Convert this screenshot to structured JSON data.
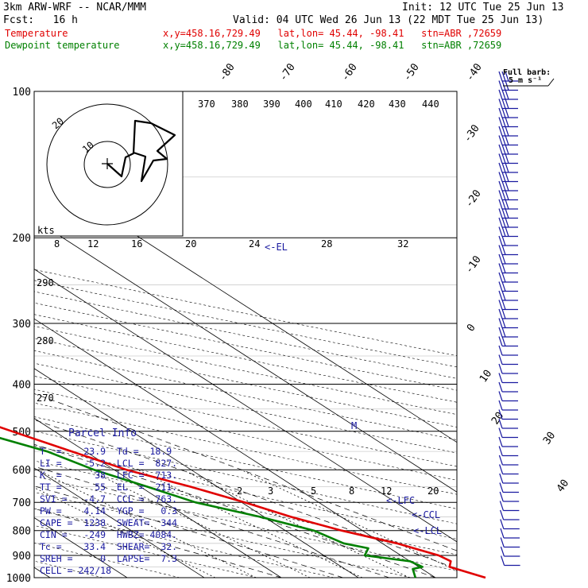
{
  "header": {
    "model": "3km ARW-WRF -- NCAR/MMM",
    "init": "Init: 12 UTC Tue 25 Jun 13",
    "fcst": "Fcst:   16 h",
    "valid": "Valid: 04 UTC Wed 26 Jun 13 (22 MDT Tue 25 Jun 13)",
    "temp_label": "Temperature",
    "temp_info": "x,y=458.16,729.49   lat,lon= 45.44, -98.41   stn=ABR ,72659",
    "dew_label": "Dewpoint temperature",
    "dew_info": "x,y=458.16,729.49   lat,lon= 45.44, -98.41   stn=ABR ,72659"
  },
  "colors": {
    "temperature": "#e00000",
    "dewpoint": "#008000",
    "parcel": "#1a1aa0",
    "barbs": "#1a1aa0"
  },
  "wind_legend": {
    "line1": "Full barb:",
    "line2": "5 m s⁻¹"
  },
  "parcel_info": {
    "title": "Parcel Info",
    "rows": [
      "T  =    23.9  Td =  18.9",
      "LI =    -5.2  LCL =  827.",
      "K  =      38  LFC =  713.",
      "TT =      55  EL  =  211.",
      "SVI =   -4.7  CCL =  763.",
      "PW =    4.14  YGP =   0.3",
      "CAPE =  1238  SWEAT=  344",
      "CIN =   -249  HWBZ= 4084.",
      "Tc =    33.4  SHEAR=  32.",
      "SREH =     0  LAPSE=  7.3",
      "CELL = 242/18"
    ]
  },
  "hodograph": {
    "units": "kts",
    "ring_labels": [
      "20",
      "10"
    ]
  },
  "annotations": {
    "el": "<-EL",
    "lfc": "<-LFC",
    "ccl": "<-CCL",
    "lcl": "<-LCL",
    "m": "M"
  },
  "chart_data": {
    "type": "line",
    "title": "Skew-T log-P sounding",
    "xlabel": "Temperature (°C)",
    "ylabel": "Pressure (hPa)",
    "pressure_ticks": [
      "100",
      "200",
      "300",
      "400",
      "500",
      "600",
      "700",
      "800",
      "900",
      "1000"
    ],
    "isotherm_labels_top": [
      "-80",
      "-70",
      "-60",
      "-50",
      "-40"
    ],
    "isotherm_labels_right": [
      "-30",
      "-20",
      "-10",
      "0",
      "10",
      "20",
      "30",
      "40"
    ],
    "theta_labels": [
      "370",
      "380",
      "390",
      "400",
      "410",
      "420",
      "430",
      "440"
    ],
    "theta_labels_left": [
      "290",
      "280",
      "270"
    ],
    "mixing_ratio_labels": [
      "2",
      "3",
      "5",
      "8",
      "12",
      "20"
    ],
    "lower_isotherm_labels": [
      "8",
      "12",
      "16",
      "20",
      "24",
      "28",
      "32"
    ],
    "series": [
      {
        "name": "Temperature",
        "unit": "°C",
        "points": [
          [
            1000,
            26.5
          ],
          [
            950,
            24.0
          ],
          [
            925,
            25.3
          ],
          [
            900,
            24.9
          ],
          [
            850,
            21.9
          ],
          [
            800,
            17.3
          ],
          [
            750,
            13.5
          ],
          [
            700,
            10.4
          ],
          [
            650,
            6.5
          ],
          [
            600,
            1.6
          ],
          [
            550,
            -1.8
          ],
          [
            500,
            -5.5
          ],
          [
            450,
            -9.5
          ],
          [
            400,
            -14.5
          ],
          [
            350,
            -21.5
          ],
          [
            300,
            -30.0
          ],
          [
            250,
            -40.0
          ],
          [
            200,
            -50.5
          ],
          [
            180,
            -51.0
          ],
          [
            160,
            -50.5
          ],
          [
            145,
            -51.0
          ],
          [
            130,
            -48.0
          ],
          [
            115,
            -49.0
          ],
          [
            100,
            -50.5
          ]
        ]
      },
      {
        "name": "Dewpoint temperature",
        "unit": "°C",
        "points": [
          [
            1000,
            17.4
          ],
          [
            960,
            18.8
          ],
          [
            950,
            20.5
          ],
          [
            925,
            20.0
          ],
          [
            900,
            15.3
          ],
          [
            870,
            17.2
          ],
          [
            850,
            15.0
          ],
          [
            800,
            13.7
          ],
          [
            750,
            9.5
          ],
          [
            700,
            4.0
          ],
          [
            650,
            0.9
          ],
          [
            600,
            -2.6
          ],
          [
            550,
            -5.0
          ],
          [
            500,
            -10.1
          ],
          [
            450,
            -14.2
          ],
          [
            400,
            -20.0
          ],
          [
            350,
            -27.3
          ],
          [
            300,
            -36.0
          ],
          [
            250,
            -46.0
          ],
          [
            200,
            -56.5
          ],
          [
            190,
            -55.0
          ],
          [
            175,
            -49.5
          ],
          [
            155,
            -56.0
          ],
          [
            140,
            -62.5
          ],
          [
            130,
            -67.0
          ],
          [
            115,
            -72.0
          ],
          [
            100,
            -78.5
          ]
        ]
      }
    ]
  }
}
